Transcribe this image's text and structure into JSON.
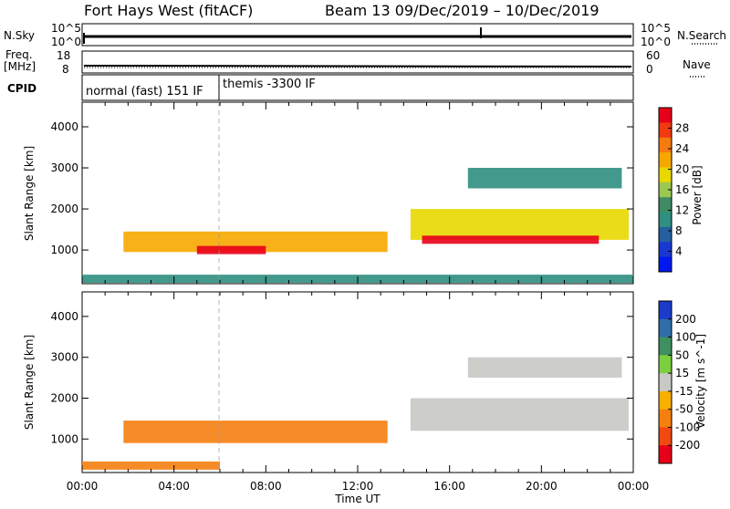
{
  "header": {
    "station": "Fort Hays West (fitACF)",
    "beam_date": "Beam 13  09/Dec/2019 – 10/Dec/2019"
  },
  "status_panels": {
    "nsky_label": "N.Sky",
    "nsky_top": "10^5",
    "nsky_bottom": "10^0",
    "nsearch_label": "N.Search",
    "nsearch_top": "10^5",
    "nsearch_bottom": "10^0",
    "freq_label_1": "Freq.",
    "freq_label_2": "[MHz]",
    "freq_top": "18",
    "freq_bottom": "8",
    "nave_label": "Nave",
    "nave_top": "60",
    "nave_bottom": "0",
    "cpid_label": "CPID",
    "cpid_mode_1": "normal (fast) 151 IF",
    "cpid_mode_2": "themis -3300 IF"
  },
  "power_panel": {
    "ylabel": "Slant Range [km]",
    "cbar_label": "Power [dB]",
    "cbar_ticks": [
      "28",
      "24",
      "20",
      "16",
      "12",
      "8",
      "4"
    ],
    "cbar_colors": [
      "#e8001a",
      "#f03a10",
      "#f57a10",
      "#f7a800",
      "#e9d800",
      "#9ac850",
      "#3f8c64",
      "#2f8f80",
      "#2460a0",
      "#1838d0",
      "#0018f0"
    ]
  },
  "velocity_panel": {
    "ylabel": "Slant Range [km]",
    "cbar_label": "Velocity [m s^-1]",
    "cbar_ticks": [
      "200",
      "100",
      "50",
      "15",
      "-15",
      "-50",
      "-100",
      "-200"
    ],
    "cbar_colors": [
      "#1a3cc8",
      "#2f6ea8",
      "#3f9060",
      "#7cd040",
      "#c8c8c4",
      "#f7b000",
      "#f58010",
      "#f04a10",
      "#e8001a"
    ]
  },
  "x_axis": {
    "label": "Time UT",
    "ticks": [
      "00:00",
      "04:00",
      "08:00",
      "12:00",
      "16:00",
      "20:00",
      "00:00"
    ]
  },
  "chart_data": [
    {
      "type": "heatmap",
      "title": "Power",
      "ylabel": "Slant Range [km]",
      "xlabel": "Time UT",
      "ylim": [
        180,
        4600
      ],
      "y_ticks": [
        1000,
        2000,
        3000,
        4000
      ],
      "x_range_hours": [
        0,
        24
      ],
      "colorbar": {
        "label": "Power [dB]",
        "ticks": [
          4,
          8,
          12,
          16,
          20,
          24,
          28
        ]
      },
      "echo_bands": [
        {
          "t_start": 1.8,
          "t_end": 13.3,
          "range_start_km": 950,
          "range_end_km": 1450,
          "power_db": 20
        },
        {
          "t_start": 5.0,
          "t_end": 8.0,
          "range_start_km": 900,
          "range_end_km": 1100,
          "power_db": 28
        },
        {
          "t_start": 14.3,
          "t_end": 23.8,
          "range_start_km": 1250,
          "range_end_km": 2000,
          "power_db": 16
        },
        {
          "t_start": 14.8,
          "t_end": 22.5,
          "range_start_km": 1150,
          "range_end_km": 1350,
          "power_db": 28
        },
        {
          "t_start": 16.8,
          "t_end": 23.5,
          "range_start_km": 2500,
          "range_end_km": 3000,
          "power_db": 8
        },
        {
          "t_start": 0.0,
          "t_end": 24.0,
          "range_start_km": 200,
          "range_end_km": 400,
          "power_db": 8
        }
      ]
    },
    {
      "type": "heatmap",
      "title": "Velocity",
      "ylabel": "Slant Range [km]",
      "xlabel": "Time UT",
      "ylim": [
        180,
        4600
      ],
      "y_ticks": [
        1000,
        2000,
        3000,
        4000
      ],
      "x_range_hours": [
        0,
        24
      ],
      "colorbar": {
        "label": "Velocity [m s^-1]",
        "ticks": [
          -200,
          -100,
          -50,
          -15,
          15,
          50,
          100,
          200
        ]
      },
      "echo_bands": [
        {
          "t_start": 1.8,
          "t_end": 13.3,
          "range_start_km": 900,
          "range_end_km": 1450,
          "velocity": -50
        },
        {
          "t_start": 14.3,
          "t_end": 23.8,
          "range_start_km": 1200,
          "range_end_km": 2000,
          "velocity": 0
        },
        {
          "t_start": 16.8,
          "t_end": 23.5,
          "range_start_km": 2500,
          "range_end_km": 3000,
          "velocity": 0
        },
        {
          "t_start": 0.0,
          "t_end": 6.0,
          "range_start_km": 250,
          "range_end_km": 450,
          "velocity": -50
        }
      ]
    }
  ]
}
